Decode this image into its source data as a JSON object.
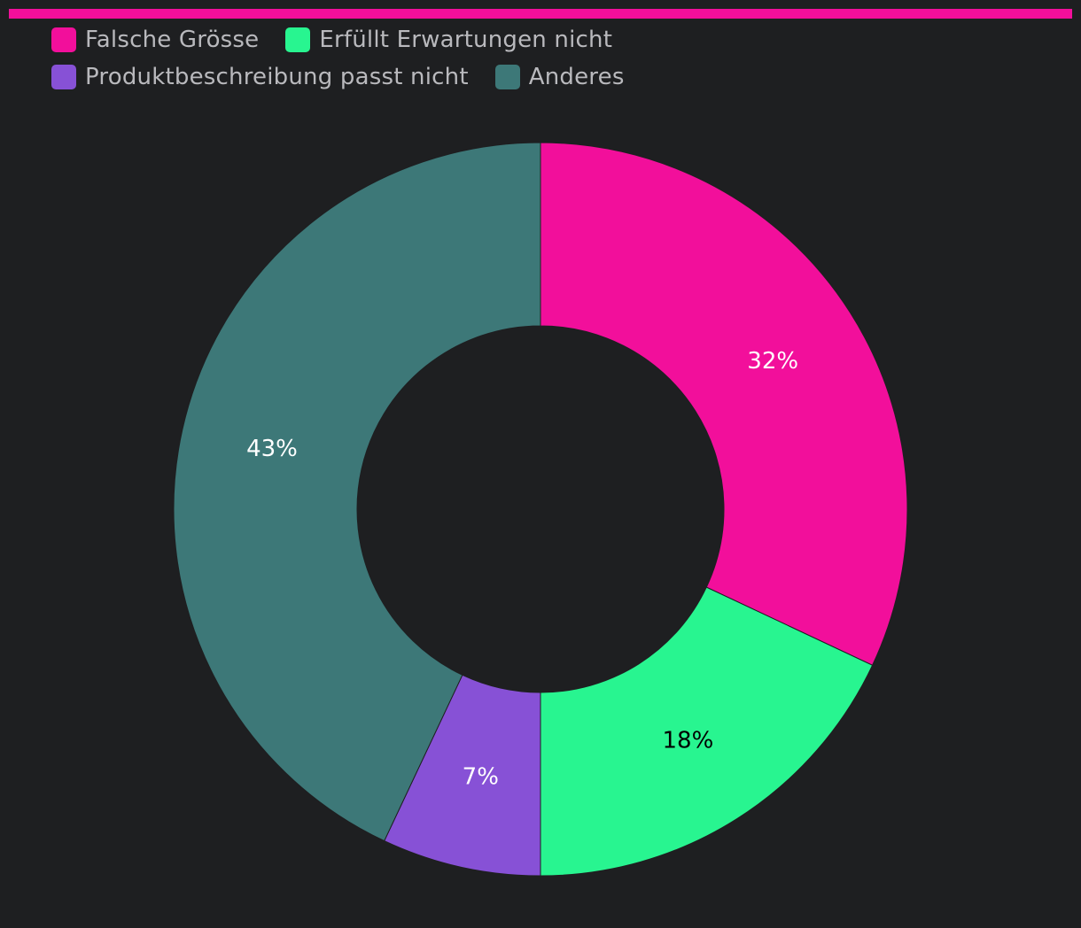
{
  "colors": {
    "background": "#1e1f21",
    "accent_bar": "#f20f9b",
    "legend_text": "#b9b9bd"
  },
  "legend": {
    "rows": [
      [
        0,
        1
      ],
      [
        2,
        3
      ]
    ]
  },
  "chart_data": {
    "type": "pie",
    "donut": true,
    "legend_position": "top-left",
    "title": "",
    "categories": [
      "Falsche Grösse",
      "Erfüllt Erwartungen nicht",
      "Produktbeschreibung passt nicht",
      "Anderes"
    ],
    "values": [
      32,
      18,
      7,
      43
    ],
    "labels": [
      "32%",
      "18%",
      "7%",
      "43%"
    ],
    "colors": [
      "#f20f9b",
      "#28f590",
      "#8751d6",
      "#3d7878"
    ],
    "label_colors": [
      "#ffffff",
      "#000000",
      "#ffffff",
      "#ffffff"
    ]
  }
}
